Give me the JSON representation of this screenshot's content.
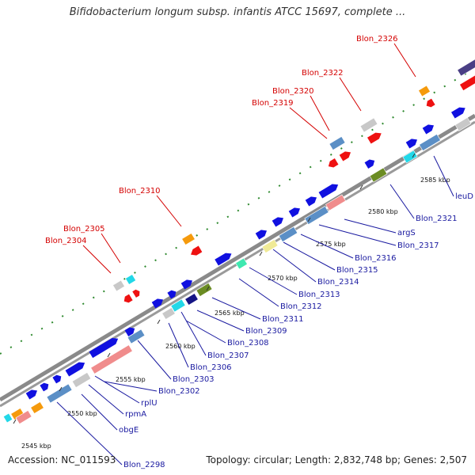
{
  "title": "Bifidobacterium longum subsp. infantis ATCC 15697, complete ...",
  "accession": "Accession: NC_011593",
  "summary": "Topology: circular; Length: 2,832,748 bp; Genes: 2,507",
  "colors": {
    "blue": "#1010e0",
    "steelblue": "#5b8fc6",
    "pink": "#f08c8c",
    "red": "#ee1111",
    "grey": "#c8c8c8",
    "orange": "#f59a0c",
    "cyan": "#22d8e8",
    "olive": "#6b8c23",
    "purple": "#4a3f85",
    "yellow": "#f0ea96",
    "mint": "#3fe8b0",
    "navy": "#151585",
    "backbone": "#888888"
  },
  "tick_labels": [
    "2545 kbp",
    "2550 kbp",
    "2555 kbp",
    "2560 kbp",
    "2565 kbp",
    "2570 kbp",
    "2575 kbp",
    "2580 kbp",
    "2585 kbp"
  ],
  "red_labels": [
    "Blon_2304",
    "Blon_2305",
    "Blon_2310",
    "Blon_2319",
    "Blon_2320",
    "Blon_2322",
    "Blon_2326"
  ],
  "blue_labels": [
    "Blon_2298",
    "obgE",
    "rpmA",
    "rplU",
    "Blon_2302",
    "Blon_2303",
    "Blon_2306",
    "Blon_2307",
    "Blon_2308",
    "Blon_2309",
    "Blon_2311",
    "Blon_2312",
    "Blon_2313",
    "Blon_2314",
    "Blon_2315",
    "Blon_2316",
    "Blon_2317",
    "argS",
    "Blon_2321",
    "leuD"
  ]
}
